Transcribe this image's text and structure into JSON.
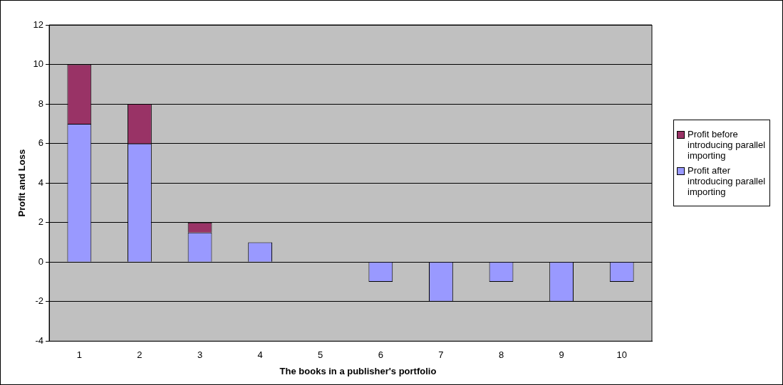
{
  "chart_data": {
    "type": "bar",
    "stacked": true,
    "xlabel": "The books in a publisher's portfolio",
    "ylabel": "Profit and Loss",
    "categories": [
      "1",
      "2",
      "3",
      "4",
      "5",
      "6",
      "7",
      "8",
      "9",
      "10"
    ],
    "series": [
      {
        "name": "Profit after introducing parallel importing",
        "color": "#9999ff",
        "values": [
          7,
          6,
          1.5,
          1,
          0,
          -1,
          -2,
          -1,
          -2,
          -1
        ]
      },
      {
        "name": "Profit before introducing parallel importing",
        "color": "#993366",
        "values": [
          3,
          2,
          0.5,
          0,
          0,
          0,
          0,
          0,
          0,
          0
        ]
      }
    ],
    "ylim": [
      -4,
      12
    ],
    "yticks": [
      -4,
      -2,
      0,
      2,
      4,
      6,
      8,
      10,
      12
    ],
    "grid": "y",
    "legend": "right"
  }
}
